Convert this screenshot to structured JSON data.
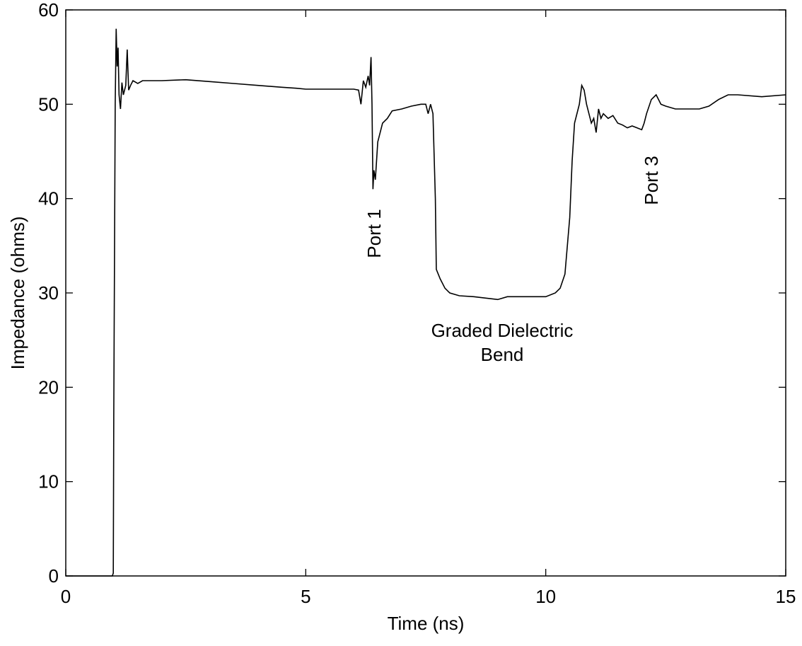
{
  "chart_data": {
    "type": "line",
    "x_label": "Time (ns)",
    "y_label": "Impedance (ohms)",
    "xlim": [
      0,
      15
    ],
    "ylim": [
      0,
      60
    ],
    "xticks": [
      0,
      5,
      10,
      15
    ],
    "yticks": [
      0,
      10,
      20,
      30,
      40,
      50,
      60
    ],
    "grid": false,
    "annotations": [
      "Port 1",
      "Graded Dielectric",
      "Bend",
      "Port 3"
    ],
    "series": [
      {
        "color": "#000000",
        "x": [
          0,
          0.97,
          0.99,
          1.0,
          1.03,
          1.05,
          1.07,
          1.09,
          1.11,
          1.14,
          1.17,
          1.2,
          1.25,
          1.28,
          1.31,
          1.35,
          1.4,
          1.5,
          1.6,
          2,
          2.5,
          3,
          3.5,
          4,
          4.5,
          4.8,
          5,
          6,
          6.1,
          6.15,
          6.2,
          6.25,
          6.3,
          6.33,
          6.36,
          6.38,
          6.4,
          6.42,
          6.45,
          6.5,
          6.55,
          6.6,
          6.7,
          6.8,
          7,
          7.2,
          7.4,
          7.5,
          7.55,
          7.6,
          7.65,
          7.7,
          7.72,
          7.8,
          7.9,
          8,
          8.2,
          8.5,
          9,
          9.2,
          9.5,
          10,
          10.2,
          10.3,
          10.4,
          10.5,
          10.55,
          10.6,
          10.7,
          10.75,
          10.8,
          10.85,
          10.9,
          10.95,
          11,
          11.05,
          11.1,
          11.15,
          11.2,
          11.3,
          11.4,
          11.5,
          11.6,
          11.7,
          11.8,
          11.9,
          12,
          12.05,
          12.1,
          12.2,
          12.3,
          12.4,
          12.5,
          12.7,
          13,
          13.2,
          13.4,
          13.6,
          13.8,
          14,
          14.5,
          15
        ],
        "values": [
          0,
          0,
          0.3,
          17,
          50,
          58,
          54,
          56,
          51,
          49.5,
          52.3,
          51,
          52,
          55.8,
          51.5,
          52,
          52.5,
          52.2,
          52.5,
          52.5,
          52.6,
          52.4,
          52.2,
          52,
          51.8,
          51.7,
          51.6,
          51.6,
          51.5,
          50,
          52.5,
          51.8,
          53,
          52,
          55,
          50,
          41,
          43,
          42,
          46,
          47,
          48,
          48.5,
          49.3,
          49.5,
          49.8,
          50,
          50,
          49,
          50,
          49,
          40,
          32.5,
          31.5,
          30.5,
          30,
          29.7,
          29.6,
          29.3,
          29.6,
          29.6,
          29.6,
          30,
          30.5,
          32,
          38,
          44,
          48,
          50,
          52,
          51.5,
          50,
          49,
          48,
          48.5,
          47,
          49.5,
          48.5,
          49,
          48.5,
          48.8,
          48,
          47.8,
          47.5,
          47.7,
          47.5,
          47.3,
          48,
          49,
          50.5,
          51,
          50,
          49.8,
          49.5,
          49.5,
          49.5,
          49.8,
          50.5,
          51,
          51,
          50.8,
          51
        ]
      }
    ]
  }
}
